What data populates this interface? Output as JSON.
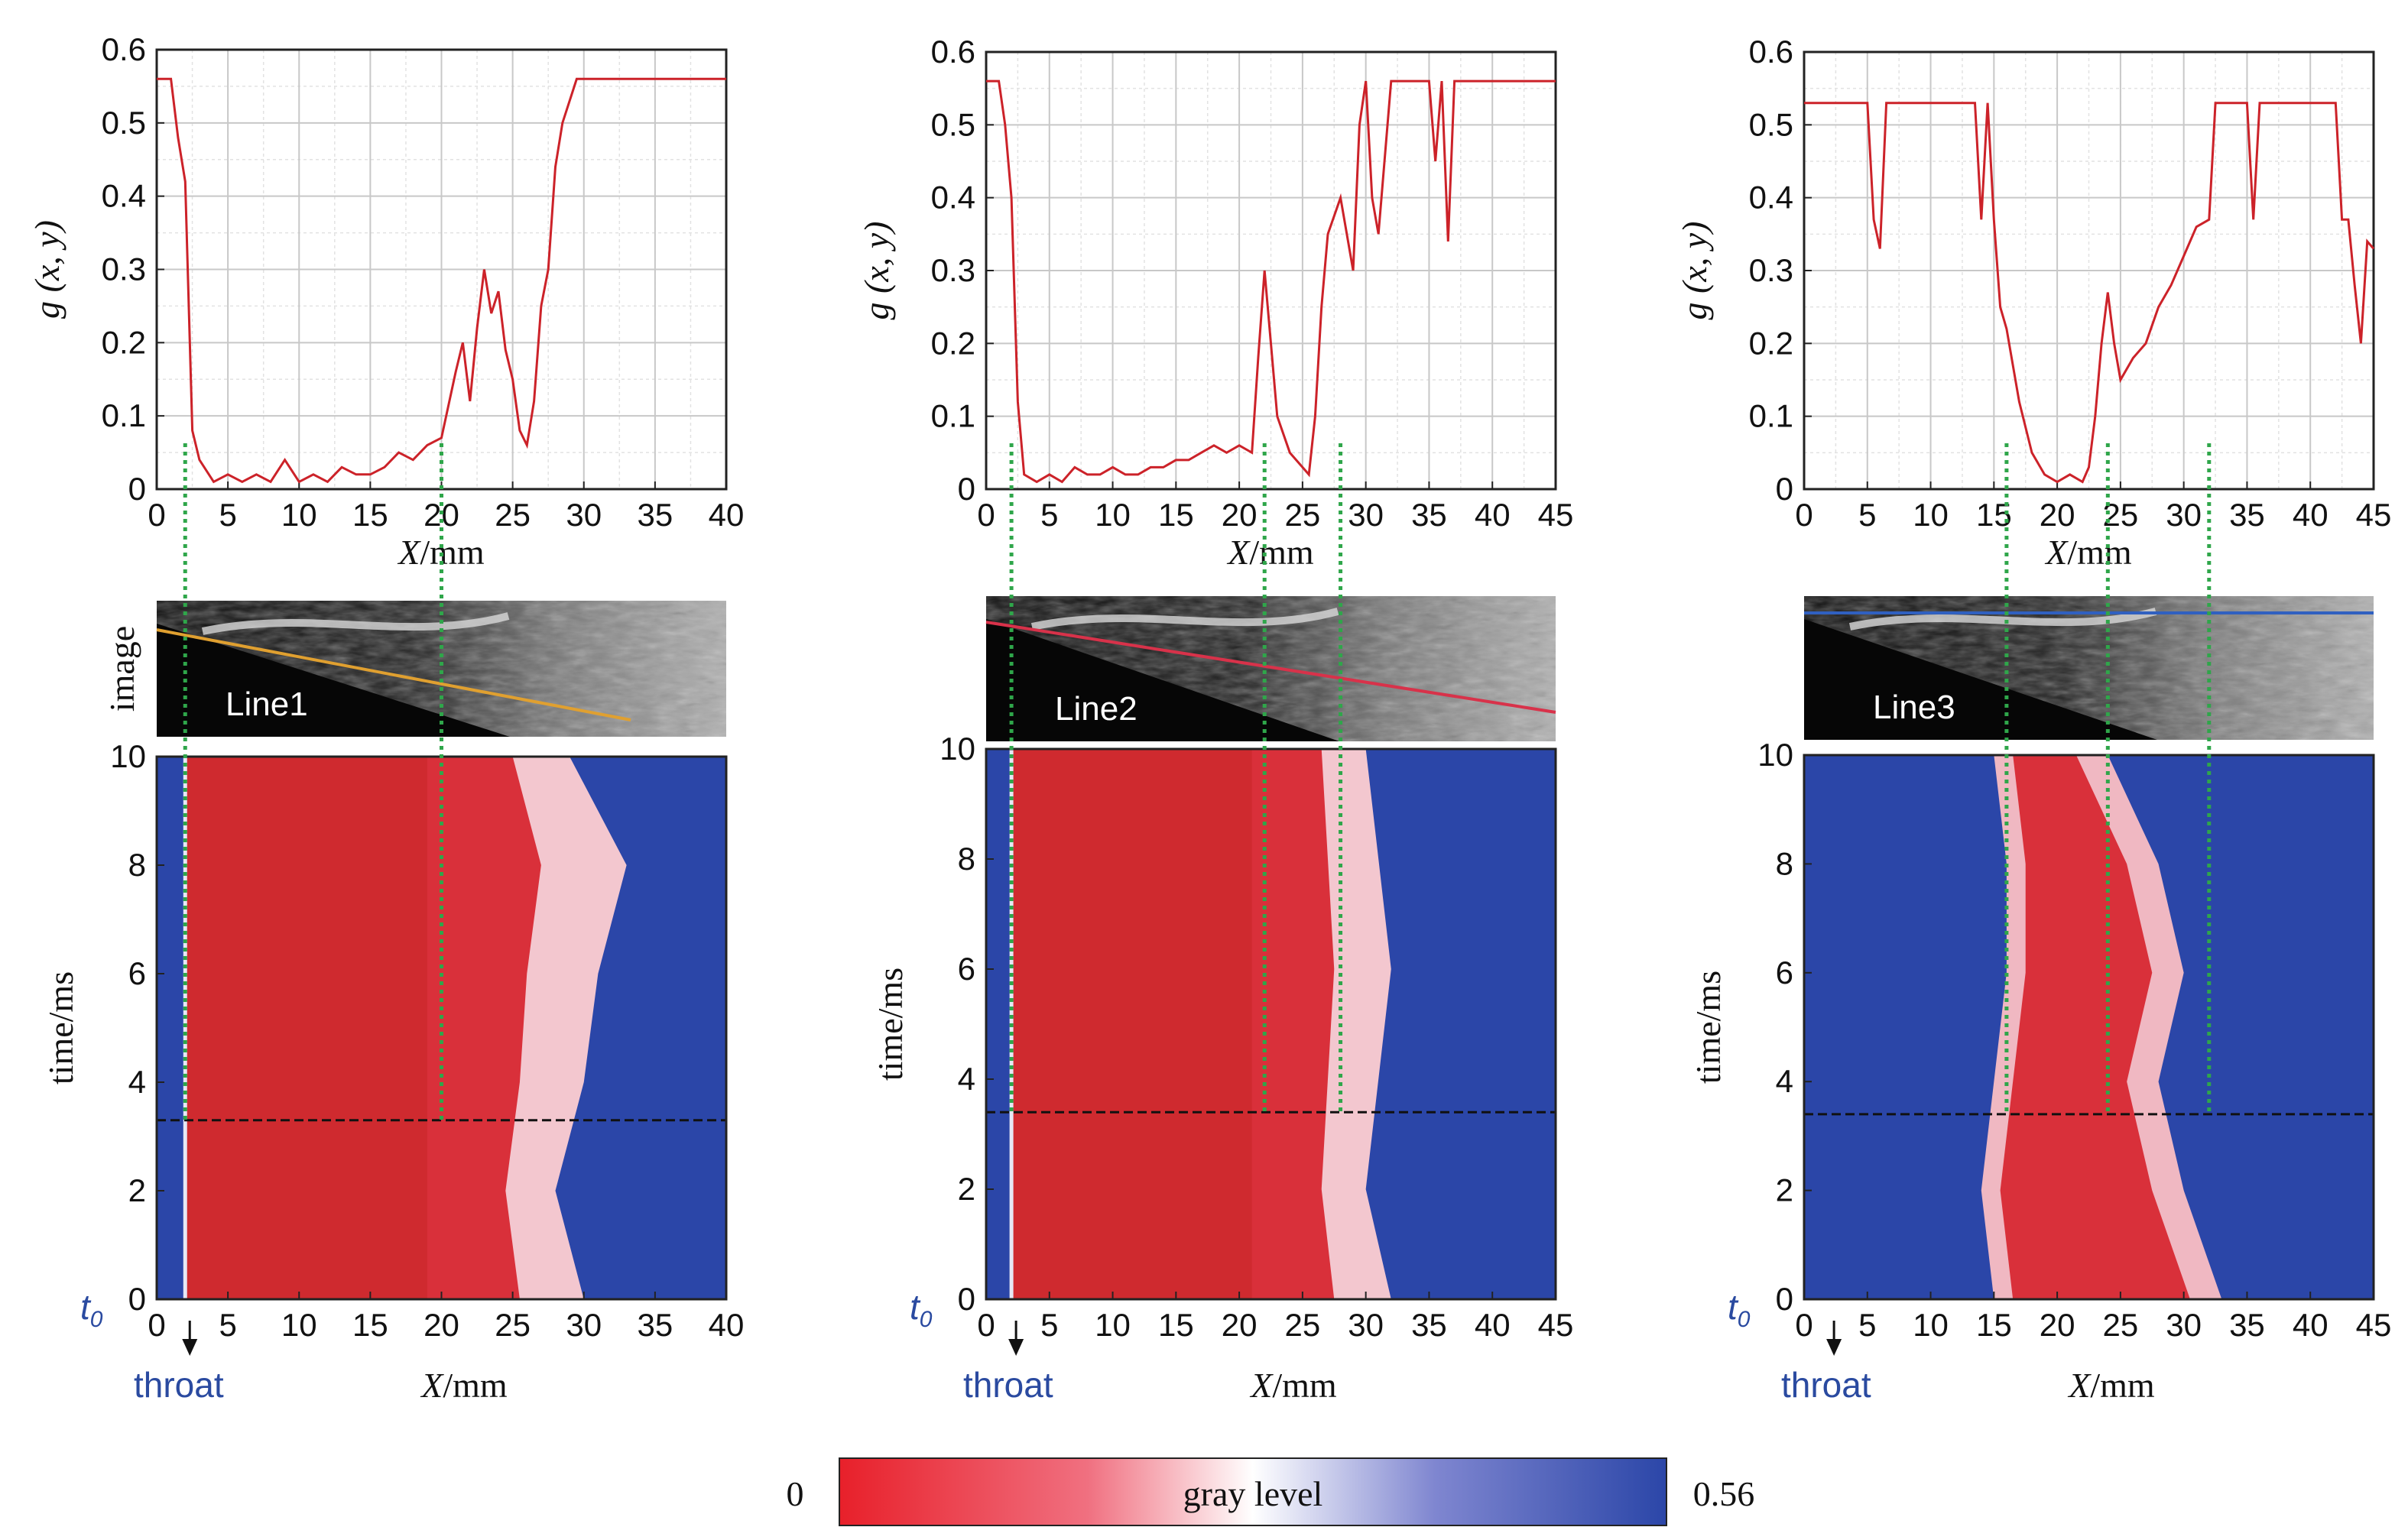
{
  "figure": {
    "colorbar": {
      "min_label": "0",
      "max_label": "0.56",
      "label": "gray level",
      "colors": [
        "#e8202a",
        "#f07080",
        "#ffffff",
        "#7f86d0",
        "#2b46a8"
      ]
    },
    "image_axis_label": "image",
    "t0_label": "t",
    "t0_subscript": "0",
    "throat_label": "throat"
  },
  "chart_data": [
    {
      "type": "line",
      "panel": "left-top",
      "title": "",
      "xlabel": "X/mm",
      "ylabel": "g (x, y)",
      "xlim": [
        0,
        40
      ],
      "ylim": [
        0,
        0.6
      ],
      "xticks": [
        0,
        5,
        10,
        15,
        20,
        25,
        30,
        35,
        40
      ],
      "yticks": [
        0,
        0.1,
        0.2,
        0.3,
        0.4,
        0.5,
        0.6
      ],
      "x": [
        0,
        1,
        1.5,
        2,
        2.5,
        3,
        4,
        5,
        6,
        7,
        8,
        9,
        10,
        11,
        12,
        13,
        14,
        15,
        16,
        17,
        18,
        19,
        20,
        21,
        21.5,
        22,
        22.5,
        23,
        23.5,
        24,
        24.5,
        25,
        25.5,
        26,
        26.5,
        27,
        27.5,
        28,
        28.5,
        29,
        29.5,
        30,
        35,
        40
      ],
      "y": [
        0.56,
        0.56,
        0.48,
        0.42,
        0.08,
        0.04,
        0.01,
        0.02,
        0.01,
        0.02,
        0.01,
        0.04,
        0.01,
        0.02,
        0.01,
        0.03,
        0.02,
        0.02,
        0.03,
        0.05,
        0.04,
        0.06,
        0.07,
        0.16,
        0.2,
        0.12,
        0.22,
        0.3,
        0.24,
        0.27,
        0.19,
        0.15,
        0.08,
        0.06,
        0.12,
        0.25,
        0.3,
        0.44,
        0.5,
        0.53,
        0.56,
        0.56,
        0.56,
        0.56
      ]
    },
    {
      "type": "line",
      "panel": "middle-top",
      "title": "",
      "xlabel": "X/mm",
      "ylabel": "g (x, y)",
      "xlim": [
        0,
        45
      ],
      "ylim": [
        0,
        0.6
      ],
      "xticks": [
        0,
        5,
        10,
        15,
        20,
        25,
        30,
        35,
        40,
        45
      ],
      "yticks": [
        0,
        0.1,
        0.2,
        0.3,
        0.4,
        0.5,
        0.6
      ],
      "x": [
        0,
        1,
        1.5,
        2,
        2.5,
        3,
        4,
        5,
        6,
        7,
        8,
        9,
        10,
        11,
        12,
        13,
        14,
        15,
        16,
        17,
        18,
        19,
        20,
        21,
        21.5,
        22,
        22.5,
        23,
        24,
        25,
        25.5,
        26,
        26.5,
        27,
        28,
        29,
        29.5,
        30,
        30.5,
        31,
        32,
        33,
        34,
        35,
        35.5,
        36,
        36.5,
        37,
        40,
        45
      ],
      "y": [
        0.56,
        0.56,
        0.5,
        0.4,
        0.12,
        0.02,
        0.01,
        0.02,
        0.01,
        0.03,
        0.02,
        0.02,
        0.03,
        0.02,
        0.02,
        0.03,
        0.03,
        0.04,
        0.04,
        0.05,
        0.06,
        0.05,
        0.06,
        0.05,
        0.18,
        0.3,
        0.2,
        0.1,
        0.05,
        0.03,
        0.02,
        0.1,
        0.25,
        0.35,
        0.4,
        0.3,
        0.5,
        0.56,
        0.4,
        0.35,
        0.56,
        0.56,
        0.56,
        0.56,
        0.45,
        0.56,
        0.34,
        0.56,
        0.56,
        0.56
      ]
    },
    {
      "type": "line",
      "panel": "right-top",
      "title": "",
      "xlabel": "X/mm",
      "ylabel": "g (x, y)",
      "xlim": [
        0,
        45
      ],
      "ylim": [
        0,
        0.6
      ],
      "xticks": [
        0,
        5,
        10,
        15,
        20,
        25,
        30,
        35,
        40,
        45
      ],
      "yticks": [
        0,
        0.1,
        0.2,
        0.3,
        0.4,
        0.5,
        0.6
      ],
      "x": [
        0,
        5,
        5.5,
        6,
        6.5,
        7,
        13.5,
        14,
        14.5,
        15,
        15.5,
        16,
        17,
        18,
        19,
        20,
        21,
        22,
        22.5,
        23,
        23.5,
        24,
        24.5,
        25,
        26,
        27,
        28,
        29,
        30,
        31,
        32,
        32.5,
        33,
        34,
        35,
        35.5,
        36,
        40,
        42,
        42.5,
        43,
        43.5,
        44,
        44.5,
        45
      ],
      "y": [
        0.53,
        0.53,
        0.37,
        0.33,
        0.53,
        0.53,
        0.53,
        0.37,
        0.53,
        0.37,
        0.25,
        0.22,
        0.12,
        0.05,
        0.02,
        0.01,
        0.02,
        0.01,
        0.03,
        0.1,
        0.2,
        0.27,
        0.2,
        0.15,
        0.18,
        0.2,
        0.25,
        0.28,
        0.32,
        0.36,
        0.37,
        0.53,
        0.53,
        0.53,
        0.53,
        0.37,
        0.53,
        0.53,
        0.53,
        0.37,
        0.37,
        0.28,
        0.2,
        0.34,
        0.33
      ]
    },
    {
      "type": "heatmap",
      "panel": "left-bottom",
      "image_label": "Line1",
      "xlabel": "X/mm",
      "ylabel": "time/ms",
      "xlim": [
        0,
        40
      ],
      "ylim": [
        0,
        10
      ],
      "xticks": [
        0,
        5,
        10,
        15,
        20,
        25,
        30,
        35,
        40
      ],
      "yticks": [
        0,
        2,
        4,
        6,
        8,
        10
      ],
      "dashed_time_ms": 3.3,
      "throat_x_mm": 2,
      "red_region_end_mm": 19,
      "front_end_mm": [
        [
          0,
          30
        ],
        [
          2,
          28
        ],
        [
          4,
          30
        ],
        [
          6,
          31
        ],
        [
          8,
          33
        ],
        [
          10,
          29
        ]
      ],
      "guide_x_mm": [
        2,
        20
      ],
      "colorbar": "figure.colorbar"
    },
    {
      "type": "heatmap",
      "panel": "middle-bottom",
      "image_label": "Line2",
      "xlabel": "X/mm",
      "ylabel": "time/ms",
      "xlim": [
        0,
        45
      ],
      "ylim": [
        0,
        10
      ],
      "xticks": [
        0,
        5,
        10,
        15,
        20,
        25,
        30,
        35,
        40,
        45
      ],
      "yticks": [
        0,
        2,
        4,
        6,
        8,
        10
      ],
      "dashed_time_ms": 3.4,
      "throat_x_mm": 2,
      "red_region_end_mm": 21,
      "front_end_mm": [
        [
          0,
          32
        ],
        [
          2,
          30
        ],
        [
          4,
          31
        ],
        [
          6,
          32
        ],
        [
          8,
          31
        ],
        [
          10,
          30
        ]
      ],
      "guide_x_mm": [
        2,
        22,
        28
      ]
    },
    {
      "type": "heatmap",
      "panel": "right-bottom",
      "image_label": "Line3",
      "xlabel": "X/mm",
      "ylabel": "time/ms",
      "xlim": [
        0,
        45
      ],
      "ylim": [
        0,
        10
      ],
      "xticks": [
        0,
        5,
        10,
        15,
        20,
        25,
        30,
        35,
        40,
        45
      ],
      "yticks": [
        0,
        2,
        4,
        6,
        8,
        10
      ],
      "dashed_time_ms": 3.4,
      "throat_x_mm": 2,
      "red_band_mm": [
        [
          0,
          15,
          33
        ],
        [
          2,
          14,
          30
        ],
        [
          4,
          15,
          28
        ],
        [
          6,
          16,
          30
        ],
        [
          8,
          16,
          28
        ],
        [
          10,
          15,
          24
        ]
      ],
      "guide_x_mm": [
        16,
        24,
        32
      ]
    }
  ]
}
